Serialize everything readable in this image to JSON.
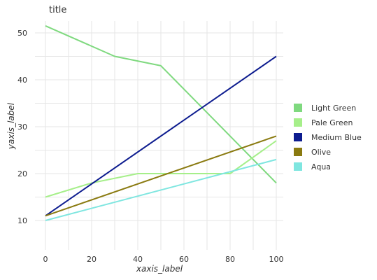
{
  "chart_data": {
    "type": "line",
    "title": "title",
    "xlabel": "xaxis_label",
    "ylabel": "yaxis_label",
    "xlim": [
      0,
      100
    ],
    "ylim": [
      8,
      52
    ],
    "xticks": [
      0,
      20,
      40,
      60,
      80,
      100
    ],
    "yticks": [
      10,
      20,
      30,
      40,
      50
    ],
    "grid": true,
    "legend_position": "right",
    "series": [
      {
        "name": "Light Green",
        "color": "#7fd97f",
        "x": [
          0,
          30,
          50,
          80,
          100
        ],
        "y": [
          51.5,
          45,
          43,
          28,
          18
        ]
      },
      {
        "name": "Pale Green",
        "color": "#a6ef8a",
        "x": [
          0,
          20,
          40,
          60,
          80,
          100
        ],
        "y": [
          15,
          18,
          20,
          20,
          20,
          27
        ]
      },
      {
        "name": "Medium Blue",
        "color": "#0d1c8f",
        "x": [
          0,
          100
        ],
        "y": [
          11,
          45
        ]
      },
      {
        "name": "Olive",
        "color": "#8a7a10",
        "x": [
          0,
          100
        ],
        "y": [
          11,
          28
        ]
      },
      {
        "name": "Aqua",
        "color": "#7fe6e0",
        "x": [
          0,
          100
        ],
        "y": [
          10,
          23
        ]
      }
    ]
  }
}
